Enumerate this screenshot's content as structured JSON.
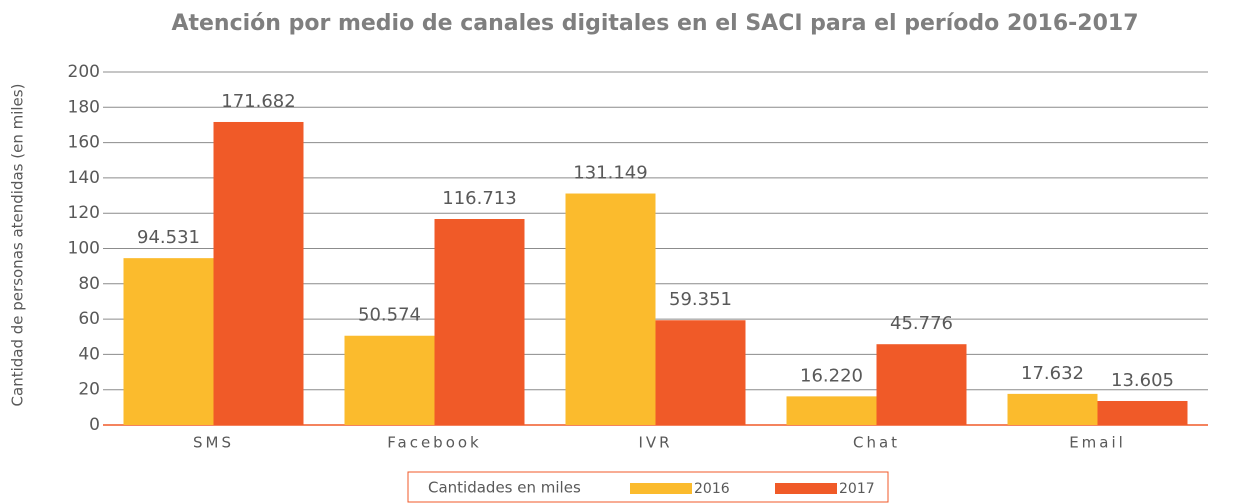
{
  "chart_data": {
    "type": "bar",
    "title": "Atención por medio de canales digitales en el SACI para el período 2016-2017",
    "y_label": "Cantidad de personas atendidas (en miles)",
    "legend_title": "Cantidades en miles",
    "categories": [
      "SMS",
      "Facebook",
      "IVR",
      "Chat",
      "Email"
    ],
    "series": [
      {
        "name": "2016",
        "color": "#fbbb2d",
        "values": [
          94.531,
          50.574,
          131.149,
          16.22,
          17.632
        ],
        "value_labels": [
          "94.531",
          "50.574",
          "131.149",
          "16.220",
          "17.632"
        ]
      },
      {
        "name": "2017",
        "color": "#f05a28",
        "values": [
          171.682,
          116.713,
          59.351,
          45.776,
          13.605
        ],
        "value_labels": [
          "171.682",
          "116.713",
          "59.351",
          "45.776",
          "13.605"
        ]
      }
    ],
    "ylim": [
      0,
      200
    ],
    "yticks": [
      0,
      20,
      40,
      60,
      80,
      100,
      120,
      140,
      160,
      180,
      200
    ],
    "grid": true
  }
}
